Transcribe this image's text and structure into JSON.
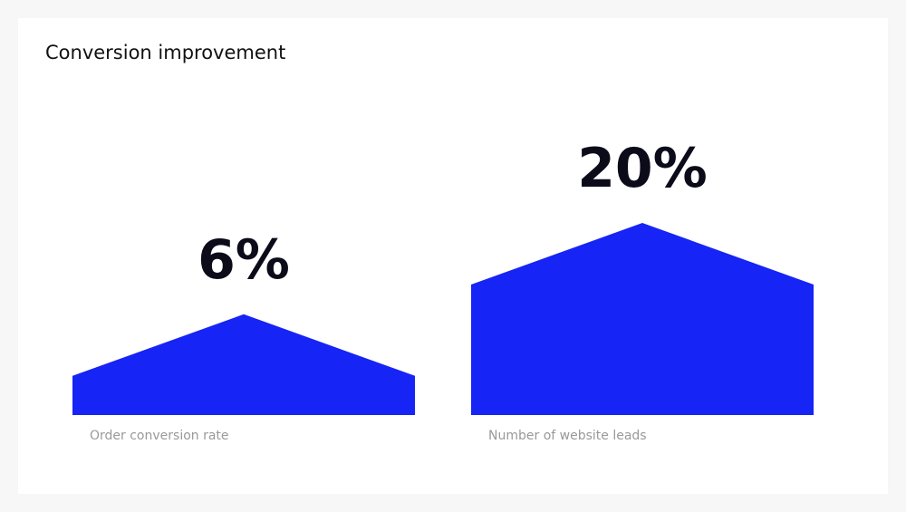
{
  "chart_data": {
    "type": "bar",
    "title": "Conversion improvement",
    "categories": [
      "Order conversion rate",
      "Number of website leads"
    ],
    "values": [
      6,
      20
    ],
    "value_labels": [
      "6%",
      "20%"
    ],
    "color": "#1624f5"
  }
}
